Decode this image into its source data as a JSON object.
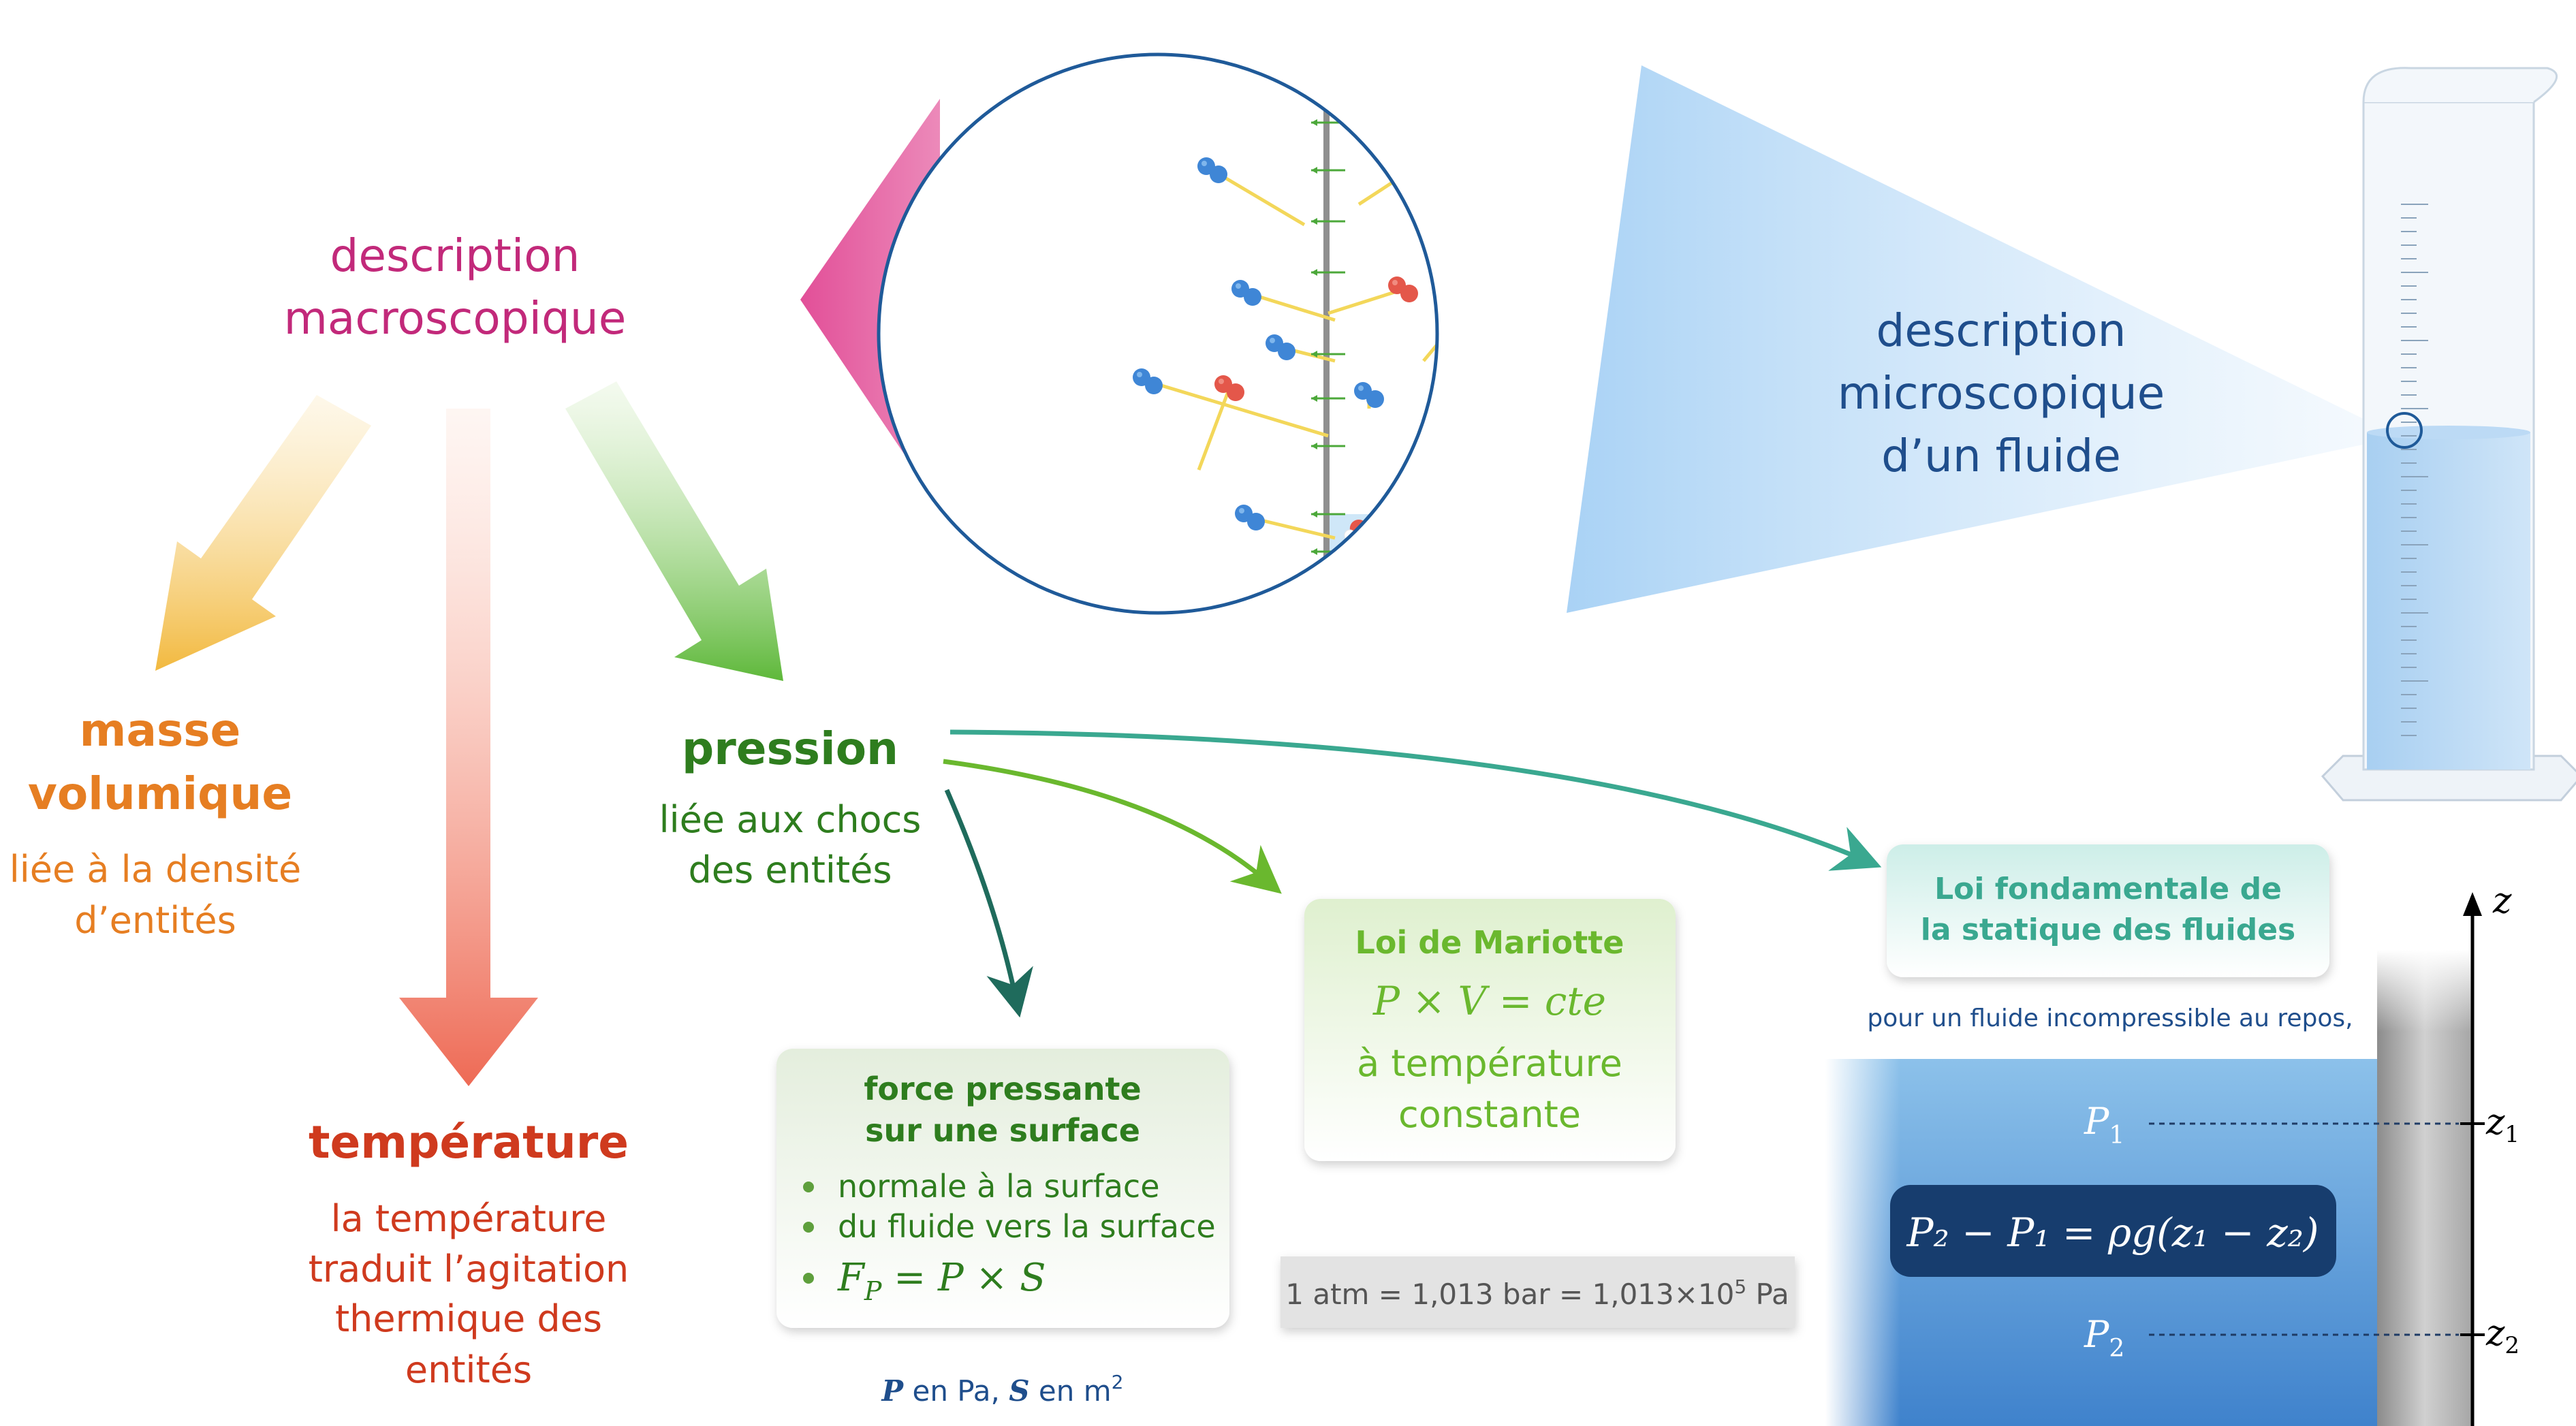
{
  "macro": {
    "line1": "description",
    "line2": "macroscopique"
  },
  "micro": {
    "line1": "description",
    "line2": "microscopique",
    "line3": "d’un fluide"
  },
  "masse": {
    "title1": "masse",
    "title2": "volumique",
    "sub1": "liée à la densité",
    "sub2": "d’entités"
  },
  "temperature": {
    "title": "température",
    "sub1": "la température",
    "sub2": "traduit l’agitation",
    "sub3": "thermique des",
    "sub4": "entités"
  },
  "pression": {
    "title": "pression",
    "sub1": "liée aux chocs",
    "sub2": "des entités"
  },
  "force_box": {
    "title1": "force pressante",
    "title2": "sur une surface",
    "bullet1": "normale à la surface",
    "bullet2": "du fluide vers la surface",
    "formula_lhs": "F",
    "formula_sub": "P",
    "formula_rhs": " = P × S",
    "units_p": "P",
    "units_mid": " en Pa, ",
    "units_s": "S",
    "units_end": " en m",
    "units_exp": "2"
  },
  "mariotte_box": {
    "title": "Loi de Mariotte",
    "formula": "P × V = cte",
    "sub1": "à température",
    "sub2": "constante"
  },
  "atm_box": {
    "text": "1 atm = 1,013 bar = 1,013×10",
    "exp": "5",
    "unit": " Pa"
  },
  "statique_box": {
    "title1": "Loi fondamentale de",
    "title2": "la statique des fluides",
    "note": "pour un fluide incompressible au repos,"
  },
  "fluid": {
    "axis": "z",
    "p1": "P",
    "p1_sub": "1",
    "p2": "P",
    "p2_sub": "2",
    "z1": "z",
    "z1_sub": "1",
    "z2": "z",
    "z2_sub": "2",
    "formula": "P₂ − P₁ = ρg(z₁ − z₂)"
  },
  "colors": {
    "macro": "#c2297a",
    "masse": "#e67e22",
    "temperature": "#cf3a1e",
    "pression": "#2e7d1e",
    "micro": "#1f4e8c",
    "mariotte": "#6ab82e",
    "formula_box": "#173d6e"
  }
}
